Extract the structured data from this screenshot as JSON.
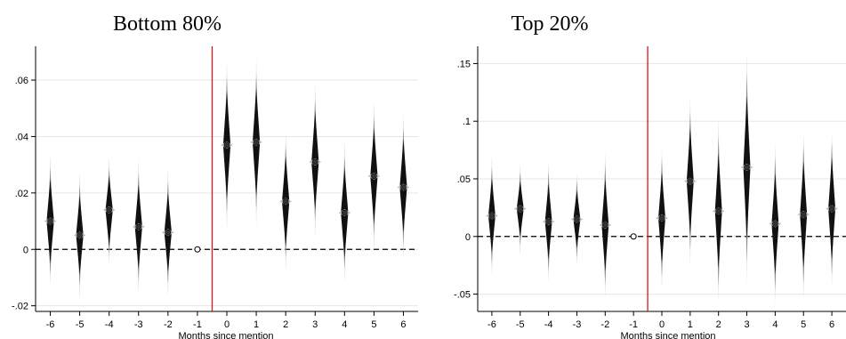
{
  "chart_data": [
    {
      "type": "scatter",
      "title": "Bottom 80%",
      "xlabel": "Months since mention",
      "ylabel": "",
      "x_ticks": [
        "-6",
        "-5",
        "-4",
        "-3",
        "-2",
        "-1",
        "0",
        "1",
        "2",
        "3",
        "4",
        "5",
        "6"
      ],
      "y_ticks": [
        -0.02,
        0,
        0.02,
        0.04,
        0.06
      ],
      "y_tick_labels": [
        "-.02",
        "0",
        ".02",
        ".04",
        ".06"
      ],
      "xlim": [
        -6.5,
        6.5
      ],
      "ylim": [
        -0.022,
        0.072
      ],
      "grid": "horizontal",
      "event_line_x": -0.5,
      "reference_line_y": 0,
      "estimates": [
        {
          "x": -6,
          "y": 0.01,
          "ci90": [
            -0.005,
            0.025
          ],
          "ci95": [
            -0.009,
            0.029
          ],
          "ci99": [
            -0.013,
            0.034
          ]
        },
        {
          "x": -5,
          "y": 0.005,
          "ci90": [
            -0.009,
            0.019
          ],
          "ci95": [
            -0.013,
            0.023
          ],
          "ci99": [
            -0.018,
            0.028
          ]
        },
        {
          "x": -4,
          "y": 0.014,
          "ci90": [
            0.001,
            0.026
          ],
          "ci95": [
            -0.002,
            0.029
          ],
          "ci99": [
            -0.006,
            0.033
          ]
        },
        {
          "x": -3,
          "y": 0.008,
          "ci90": [
            -0.007,
            0.023
          ],
          "ci95": [
            -0.011,
            0.027
          ],
          "ci99": [
            -0.016,
            0.032
          ]
        },
        {
          "x": -2,
          "y": 0.006,
          "ci90": [
            -0.008,
            0.02
          ],
          "ci95": [
            -0.012,
            0.024
          ],
          "ci99": [
            -0.017,
            0.029
          ]
        },
        {
          "x": -1,
          "y": 0,
          "reference": true
        },
        {
          "x": 0,
          "y": 0.037,
          "ci90": [
            0.018,
            0.056
          ],
          "ci95": [
            0.013,
            0.061
          ],
          "ci99": [
            0.006,
            0.067
          ]
        },
        {
          "x": 1,
          "y": 0.038,
          "ci90": [
            0.019,
            0.057
          ],
          "ci95": [
            0.014,
            0.062
          ],
          "ci99": [
            0.008,
            0.068
          ]
        },
        {
          "x": 2,
          "y": 0.017,
          "ci90": [
            0.001,
            0.033
          ],
          "ci95": [
            -0.003,
            0.037
          ],
          "ci99": [
            -0.008,
            0.042
          ]
        },
        {
          "x": 3,
          "y": 0.031,
          "ci90": [
            0.014,
            0.049
          ],
          "ci95": [
            0.01,
            0.053
          ],
          "ci99": [
            0.004,
            0.059
          ]
        },
        {
          "x": 4,
          "y": 0.013,
          "ci90": [
            -0.003,
            0.029
          ],
          "ci95": [
            -0.007,
            0.033
          ],
          "ci99": [
            -0.012,
            0.039
          ]
        },
        {
          "x": 5,
          "y": 0.026,
          "ci90": [
            0.009,
            0.043
          ],
          "ci95": [
            0.005,
            0.047
          ],
          "ci99": [
            -0.001,
            0.053
          ]
        },
        {
          "x": 6,
          "y": 0.022,
          "ci90": [
            0.006,
            0.039
          ],
          "ci95": [
            0.002,
            0.043
          ],
          "ci99": [
            -0.004,
            0.048
          ]
        }
      ]
    },
    {
      "type": "scatter",
      "title": "Top 20%",
      "xlabel": "Months since mention",
      "ylabel": "",
      "x_ticks": [
        "-6",
        "-5",
        "-4",
        "-3",
        "-2",
        "-1",
        "0",
        "1",
        "2",
        "3",
        "4",
        "5",
        "6"
      ],
      "y_ticks": [
        -0.05,
        0,
        0.05,
        0.1,
        0.15
      ],
      "y_tick_labels": [
        "-.05",
        "0",
        ".05",
        ".1",
        ".15"
      ],
      "xlim": [
        -6.5,
        6.5
      ],
      "ylim": [
        -0.065,
        0.165
      ],
      "grid": "horizontal",
      "event_line_x": -0.5,
      "reference_line_y": 0,
      "estimates": [
        {
          "x": -6,
          "y": 0.018,
          "ci90": [
            -0.014,
            0.05
          ],
          "ci95": [
            -0.024,
            0.06
          ],
          "ci99": [
            -0.034,
            0.07
          ]
        },
        {
          "x": -5,
          "y": 0.024,
          "ci90": [
            0.0,
            0.048
          ],
          "ci95": [
            -0.008,
            0.056
          ],
          "ci99": [
            -0.017,
            0.064
          ]
        },
        {
          "x": -4,
          "y": 0.013,
          "ci90": [
            -0.02,
            0.046
          ],
          "ci95": [
            -0.03,
            0.056
          ],
          "ci99": [
            -0.04,
            0.066
          ]
        },
        {
          "x": -3,
          "y": 0.015,
          "ci90": [
            -0.01,
            0.04
          ],
          "ci95": [
            -0.018,
            0.048
          ],
          "ci99": [
            -0.026,
            0.056
          ]
        },
        {
          "x": -2,
          "y": 0.01,
          "ci90": [
            -0.03,
            0.05
          ],
          "ci95": [
            -0.042,
            0.062
          ],
          "ci99": [
            -0.054,
            0.074
          ]
        },
        {
          "x": -1,
          "y": 0,
          "reference": true
        },
        {
          "x": 0,
          "y": 0.016,
          "ci90": [
            -0.023,
            0.055
          ],
          "ci95": [
            -0.035,
            0.067
          ],
          "ci99": [
            -0.047,
            0.079
          ]
        },
        {
          "x": 1,
          "y": 0.048,
          "ci90": [
            0.002,
            0.094
          ],
          "ci95": [
            -0.012,
            0.108
          ],
          "ci99": [
            -0.026,
            0.122
          ]
        },
        {
          "x": 2,
          "y": 0.022,
          "ci90": [
            -0.028,
            0.072
          ],
          "ci95": [
            -0.043,
            0.087
          ],
          "ci99": [
            -0.058,
            0.102
          ]
        },
        {
          "x": 3,
          "y": 0.06,
          "ci90": [
            -0.003,
            0.122
          ],
          "ci95": [
            -0.022,
            0.141
          ],
          "ci99": [
            -0.041,
            0.16
          ]
        },
        {
          "x": 4,
          "y": 0.011,
          "ci90": [
            -0.033,
            0.055
          ],
          "ci95": [
            -0.046,
            0.068
          ],
          "ci99": [
            -0.059,
            0.081
          ]
        },
        {
          "x": 5,
          "y": 0.019,
          "ci90": [
            -0.027,
            0.065
          ],
          "ci95": [
            -0.041,
            0.079
          ],
          "ci99": [
            -0.055,
            0.091
          ]
        },
        {
          "x": 6,
          "y": 0.024,
          "ci90": [
            -0.02,
            0.068
          ],
          "ci95": [
            -0.033,
            0.081
          ],
          "ci99": [
            -0.045,
            0.091
          ]
        }
      ]
    }
  ],
  "colors": {
    "ci90": "#111111",
    "ci95": "#8a8a8a",
    "ci99": "#d9d9d9",
    "event_line": "#d7191c",
    "grid": "#e6e6e6",
    "axis": "#000000"
  }
}
